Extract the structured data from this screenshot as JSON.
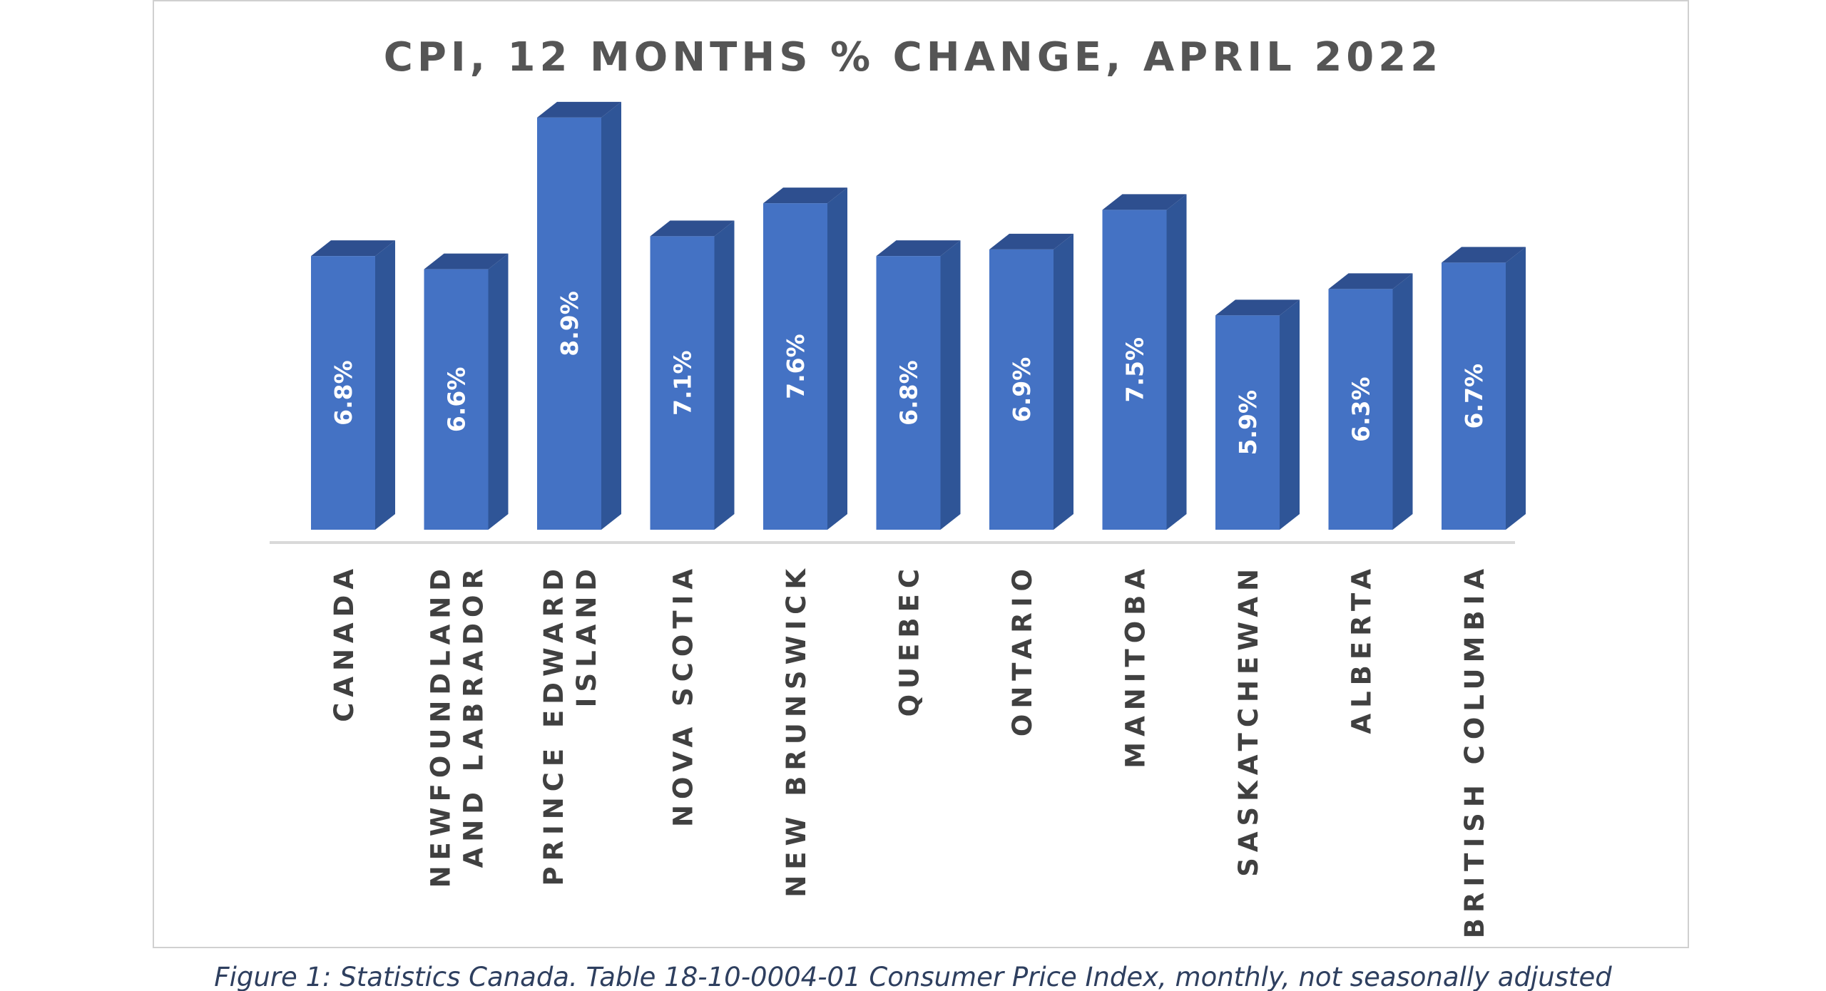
{
  "chart_data": {
    "type": "bar",
    "title": "CPI, 12 MONTHS % CHANGE, APRIL 2022",
    "categories": [
      [
        "CANADA"
      ],
      [
        "NEWFOUNDLAND",
        "AND LABRADOR"
      ],
      [
        "PRINCE EDWARD",
        "ISLAND"
      ],
      [
        "NOVA SCOTIA"
      ],
      [
        "NEW BRUNSWICK"
      ],
      [
        "QUEBEC"
      ],
      [
        "ONTARIO"
      ],
      [
        "MANITOBA"
      ],
      [
        "SASKATCHEWAN"
      ],
      [
        "ALBERTA"
      ],
      [
        "BRITISH COLUMBIA"
      ]
    ],
    "values": [
      6.8,
      6.6,
      8.9,
      7.1,
      7.6,
      6.8,
      6.9,
      7.5,
      5.9,
      6.3,
      6.7
    ],
    "value_labels": [
      "6.8%",
      "6.6%",
      "8.9%",
      "7.1%",
      "7.6%",
      "6.8%",
      "6.9%",
      "7.5%",
      "5.9%",
      "6.3%",
      "6.7%"
    ],
    "xlabel": "",
    "ylabel": "",
    "ylim": [
      0,
      10
    ],
    "grid": false,
    "legend": "none",
    "style": "3d-column",
    "colors": {
      "bar_front": "#4472c4",
      "bar_side": "#2f5597",
      "bar_top": "#2e4f8f",
      "axis_line": "#d9d9d9"
    }
  },
  "caption": "Figure 1: Statistics Canada. Table 18-10-0004-01  Consumer Price Index, monthly, not seasonally adjusted"
}
